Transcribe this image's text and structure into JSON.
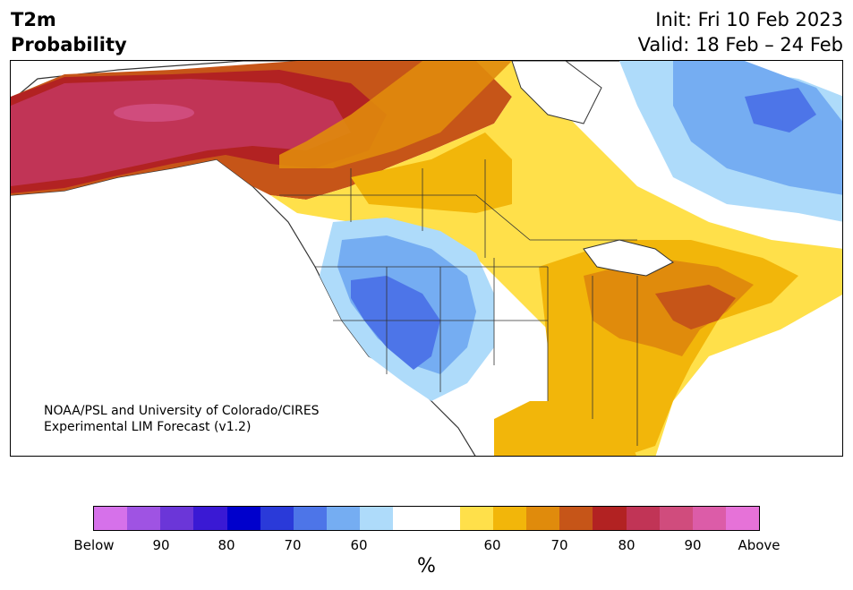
{
  "header": {
    "title_line1": "T2m",
    "title_line2": "Probability",
    "init": "Init: Fri 10 Feb 2023",
    "valid": "Valid: 18 Feb – 24 Feb"
  },
  "credit": {
    "line1": "NOAA/PSL and University of Colorado/CIRES",
    "line2": "Experimental LIM Forecast (v1.2)"
  },
  "colorbar": {
    "unit": "%",
    "colors": [
      "#d671ea",
      "#9f53e3",
      "#6b36d8",
      "#3a19d4",
      "#0000cc",
      "#2a3ad9",
      "#4d75e8",
      "#75adf2",
      "#aedbfa",
      "#ffffff",
      "#ffffff",
      "#ffe04a",
      "#f2b60a",
      "#e08b0c",
      "#c65518",
      "#b22222",
      "#c13456",
      "#d04c7d",
      "#dc5ca8",
      "#e672d8"
    ],
    "tick_labels": [
      "Below",
      "90",
      "80",
      "70",
      "60",
      "60",
      "70",
      "80",
      "90",
      "Above"
    ]
  },
  "legend_colors": {
    "above_60": "#ffe04a",
    "above_70": "#e08b0c",
    "above_80": "#b22222",
    "above_90": "#c13456",
    "below_60": "#aedbfa",
    "below_70": "#75adf2",
    "below_80": "#4d75e8"
  }
}
